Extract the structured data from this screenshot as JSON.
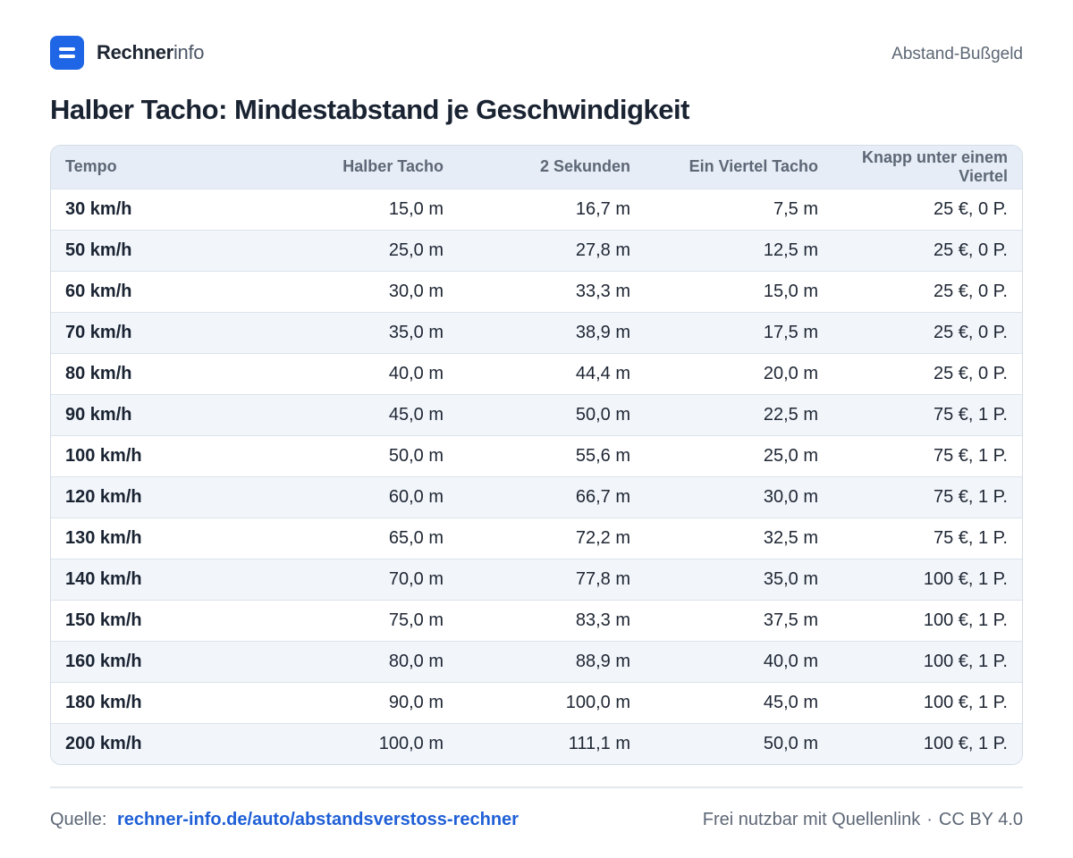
{
  "header": {
    "logo_strong": "Rechner",
    "logo_light": "info",
    "section": "Abstand-Bußgeld"
  },
  "title": "Halber Tacho: Mindestabstand je Geschwindigkeit",
  "table": {
    "columns": [
      "Tempo",
      "Halber Tacho",
      "2 Sekunden",
      "Ein Viertel Tacho",
      "Knapp unter einem Viertel"
    ],
    "rows": [
      [
        "30 km/h",
        "15,0 m",
        "16,7 m",
        "7,5 m",
        "25 €, 0 P."
      ],
      [
        "50 km/h",
        "25,0 m",
        "27,8 m",
        "12,5 m",
        "25 €, 0 P."
      ],
      [
        "60 km/h",
        "30,0 m",
        "33,3 m",
        "15,0 m",
        "25 €, 0 P."
      ],
      [
        "70 km/h",
        "35,0 m",
        "38,9 m",
        "17,5 m",
        "25 €, 0 P."
      ],
      [
        "80 km/h",
        "40,0 m",
        "44,4 m",
        "20,0 m",
        "25 €, 0 P."
      ],
      [
        "90 km/h",
        "45,0 m",
        "50,0 m",
        "22,5 m",
        "75 €, 1 P."
      ],
      [
        "100 km/h",
        "50,0 m",
        "55,6 m",
        "25,0 m",
        "75 €, 1 P."
      ],
      [
        "120 km/h",
        "60,0 m",
        "66,7 m",
        "30,0 m",
        "75 €, 1 P."
      ],
      [
        "130 km/h",
        "65,0 m",
        "72,2 m",
        "32,5 m",
        "75 €, 1 P."
      ],
      [
        "140 km/h",
        "70,0 m",
        "77,8 m",
        "35,0 m",
        "100 €, 1 P."
      ],
      [
        "150 km/h",
        "75,0 m",
        "83,3 m",
        "37,5 m",
        "100 €, 1 P."
      ],
      [
        "160 km/h",
        "80,0 m",
        "88,9 m",
        "40,0 m",
        "100 €, 1 P."
      ],
      [
        "180 km/h",
        "90,0 m",
        "100,0 m",
        "45,0 m",
        "100 €, 1 P."
      ],
      [
        "200 km/h",
        "100,0 m",
        "111,1 m",
        "50,0 m",
        "100 €, 1 P."
      ]
    ]
  },
  "footer": {
    "source_label": "Quelle:",
    "source_link": "rechner-info.de/auto/abstandsverstoss-rechner",
    "license_note": "Frei nutzbar mit Quellenlink",
    "separator": "·",
    "license": "CC BY 4.0"
  },
  "colors": {
    "brand": "#1f66e6",
    "link": "#1f5fd6",
    "header_bg": "#e6edf6",
    "stripe_bg": "#f2f6fb"
  }
}
